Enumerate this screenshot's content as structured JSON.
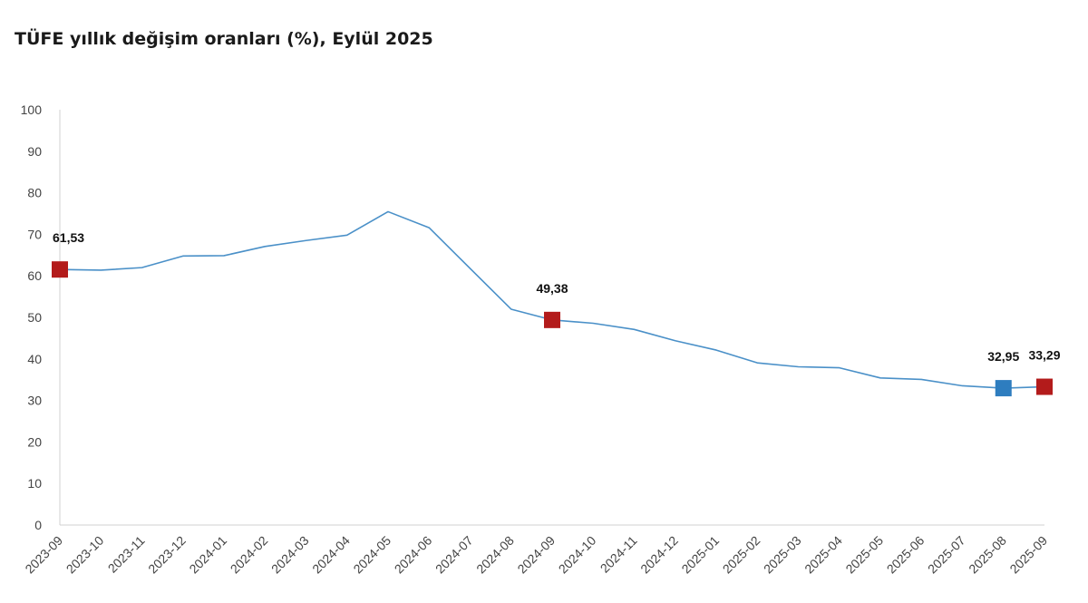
{
  "chart_data": {
    "type": "line",
    "title": "TÜFE yıllık değişim oranları (%), Eylül 2025",
    "xlabel": "",
    "ylabel": "",
    "ylim": [
      0,
      100
    ],
    "yticks": [
      0,
      10,
      20,
      30,
      40,
      50,
      60,
      70,
      80,
      90,
      100
    ],
    "grid": false,
    "legend": "none",
    "x": [
      "2023-09",
      "2023-10",
      "2023-11",
      "2023-12",
      "2024-01",
      "2024-02",
      "2024-03",
      "2024-04",
      "2024-05",
      "2024-06",
      "2024-07",
      "2024-08",
      "2024-09",
      "2024-10",
      "2024-11",
      "2024-12",
      "2025-01",
      "2025-02",
      "2025-03",
      "2025-04",
      "2025-05",
      "2025-06",
      "2025-07",
      "2025-08",
      "2025-09"
    ],
    "series": [
      {
        "color": "#4a90c8",
        "values": [
          61.53,
          61.36,
          61.98,
          64.77,
          64.86,
          67.07,
          68.5,
          69.8,
          75.45,
          71.6,
          61.78,
          51.97,
          49.38,
          48.58,
          47.09,
          44.38,
          42.12,
          39.05,
          38.1,
          37.86,
          35.41,
          35.05,
          33.52,
          32.95,
          33.29
        ]
      }
    ],
    "markers": [
      {
        "index": 0,
        "label": "61,53",
        "color": "#b31b1b"
      },
      {
        "index": 12,
        "label": "49,38",
        "color": "#b31b1b"
      },
      {
        "index": 23,
        "label": "32,95",
        "color": "#2e7dbf"
      },
      {
        "index": 24,
        "label": "33,29",
        "color": "#b31b1b"
      }
    ]
  }
}
